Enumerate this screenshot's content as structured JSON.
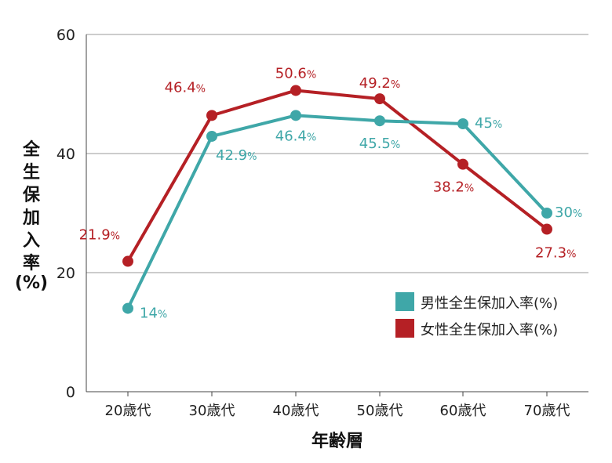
{
  "chart_data": {
    "type": "line",
    "categories": [
      "20歳代",
      "30歳代",
      "40歳代",
      "50歳代",
      "60歳代",
      "70歳代"
    ],
    "series": [
      {
        "name": "男性全生保加入率(%)",
        "color": "#3fa7a8",
        "values": [
          14,
          42.9,
          46.4,
          45.5,
          45,
          30
        ],
        "labels": [
          "14",
          "42.9",
          "46.4",
          "45.5",
          "45",
          "30"
        ]
      },
      {
        "name": "女性全生保加入率(%)",
        "color": "#b52025",
        "values": [
          21.9,
          46.4,
          50.6,
          49.2,
          38.2,
          27.3
        ],
        "labels": [
          "21.9",
          "46.4",
          "50.6",
          "49.2",
          "38.2",
          "27.3"
        ]
      }
    ],
    "label_unit": "%",
    "xlabel": "年齢層",
    "ylabel": "全生保加入率",
    "ylabel_unit": "(%)",
    "ylim": [
      0,
      60
    ],
    "yticks": [
      "0",
      "20",
      "40",
      "60"
    ],
    "grid": true,
    "legend": "bottom-right"
  }
}
